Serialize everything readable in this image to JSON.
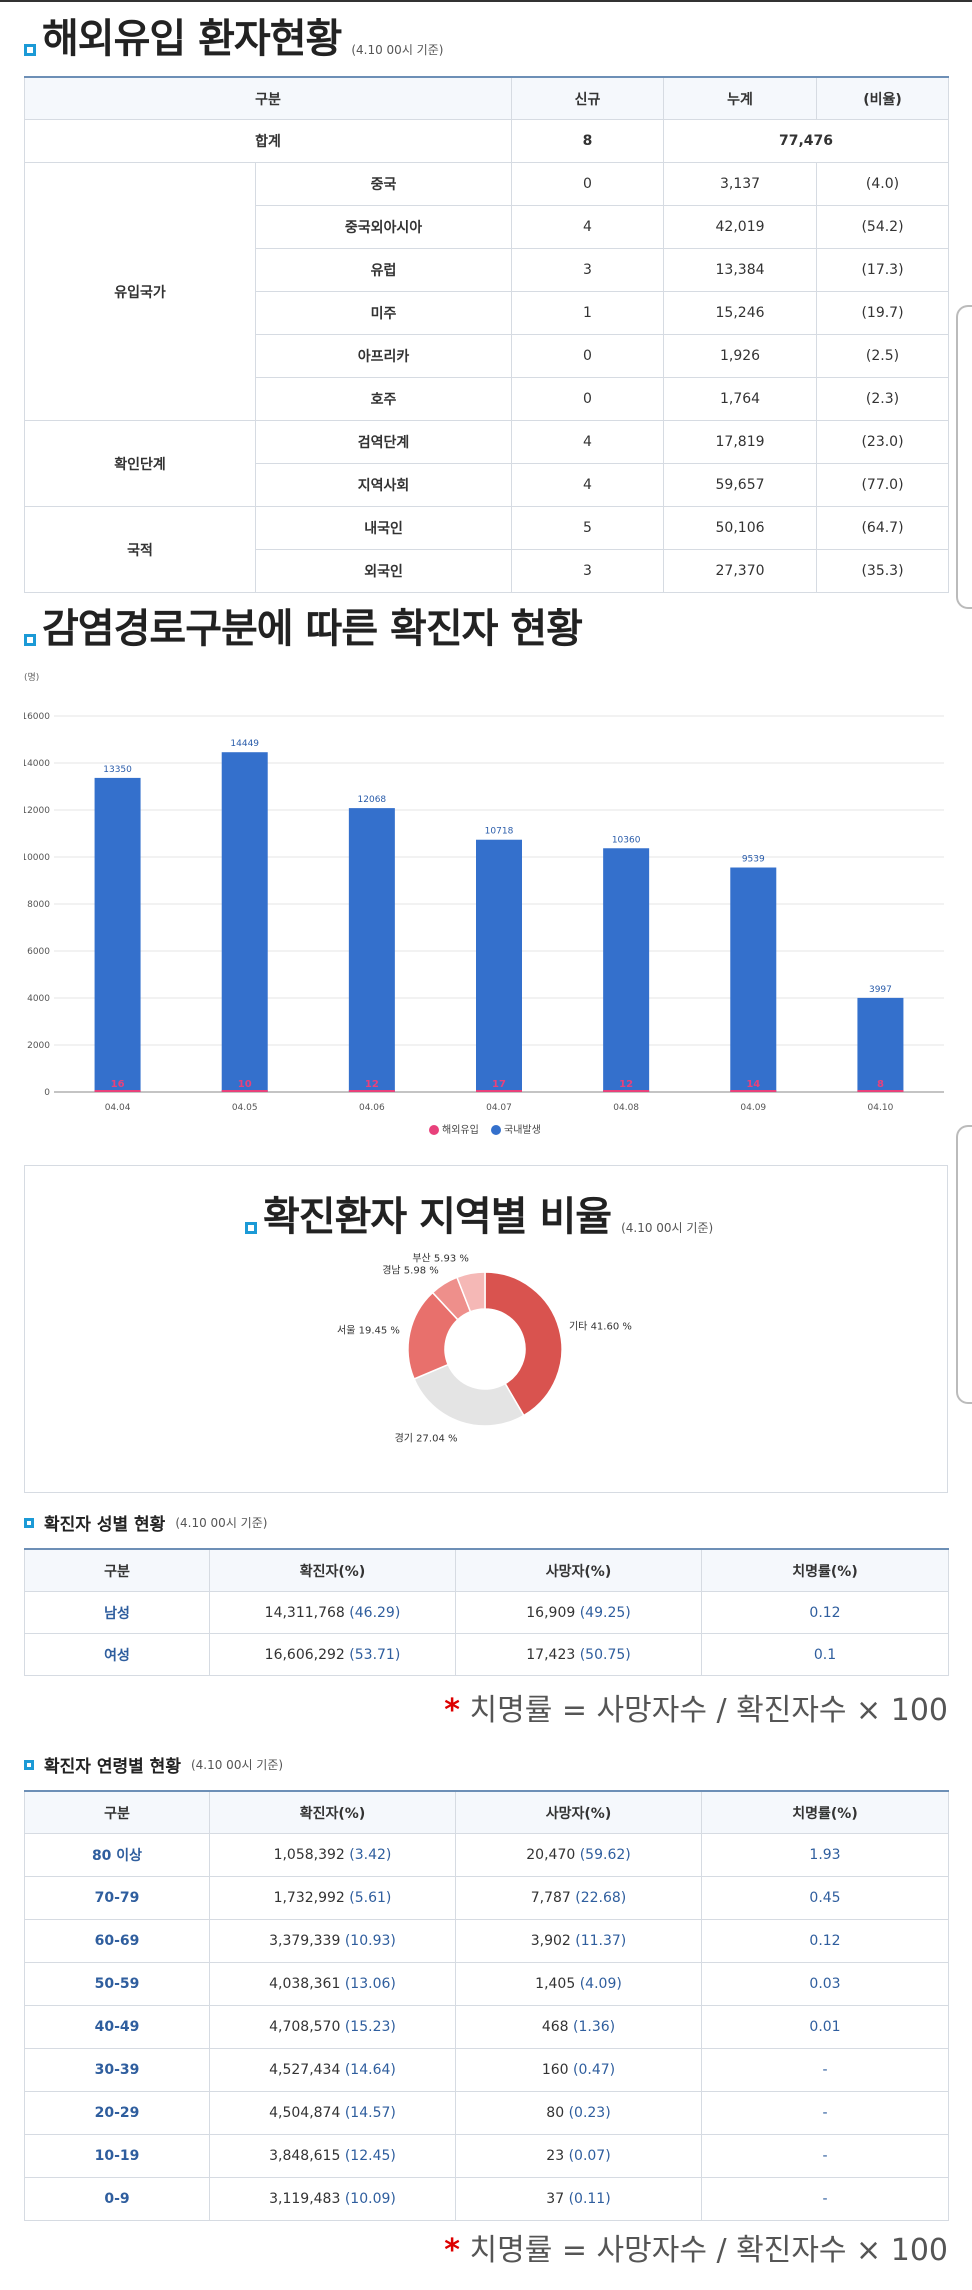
{
  "overseas": {
    "title": "해외유입 환자현황",
    "note": "(4.10 00시 기준)",
    "headers": [
      "구분",
      "신규",
      "누계",
      "(비율)"
    ],
    "total": {
      "label": "합계",
      "new": "8",
      "cum": "77,476"
    },
    "groups": [
      {
        "name": "유입국가",
        "rows": [
          {
            "label": "중국",
            "new": "0",
            "cum": "3,137",
            "ratio": "(4.0)"
          },
          {
            "label": "중국외아시아",
            "new": "4",
            "cum": "42,019",
            "ratio": "(54.2)"
          },
          {
            "label": "유럽",
            "new": "3",
            "cum": "13,384",
            "ratio": "(17.3)"
          },
          {
            "label": "미주",
            "new": "1",
            "cum": "15,246",
            "ratio": "(19.7)"
          },
          {
            "label": "아프리카",
            "new": "0",
            "cum": "1,926",
            "ratio": "(2.5)"
          },
          {
            "label": "호주",
            "new": "0",
            "cum": "1,764",
            "ratio": "(2.3)"
          }
        ]
      },
      {
        "name": "확인단계",
        "rows": [
          {
            "label": "검역단계",
            "new": "4",
            "cum": "17,819",
            "ratio": "(23.0)"
          },
          {
            "label": "지역사회",
            "new": "4",
            "cum": "59,657",
            "ratio": "(77.0)"
          }
        ]
      },
      {
        "name": "국적",
        "rows": [
          {
            "label": "내국인",
            "new": "5",
            "cum": "50,106",
            "ratio": "(64.7)"
          },
          {
            "label": "외국인",
            "new": "3",
            "cum": "27,370",
            "ratio": "(35.3)"
          }
        ]
      }
    ]
  },
  "route_title": "감염경로구분에 따른 확진자 현황",
  "region_title": "확진환자 지역별 비율",
  "region_note": "(4.10 00시 기준)",
  "gender": {
    "title": "확진자 성별 현황",
    "note": "(4.10 00시 기준)",
    "headers": [
      "구분",
      "확진자(%)",
      "사망자(%)",
      "치명률(%)"
    ],
    "rows": [
      {
        "label": "남성",
        "cases": "14,311,768",
        "cases_pct": "(46.29)",
        "deaths": "16,909",
        "deaths_pct": "(49.25)",
        "cfr": "0.12"
      },
      {
        "label": "여성",
        "cases": "16,606,292",
        "cases_pct": "(53.71)",
        "deaths": "17,423",
        "deaths_pct": "(50.75)",
        "cfr": "0.1"
      }
    ]
  },
  "formula": {
    "star": "*",
    "text": "치명률 = 사망자수 / 확진자수 × 100"
  },
  "age": {
    "title": "확진자 연령별 현황",
    "note": "(4.10 00시 기준)",
    "headers": [
      "구분",
      "확진자(%)",
      "사망자(%)",
      "치명률(%)"
    ],
    "rows": [
      {
        "label": "80 이상",
        "cases": "1,058,392",
        "cases_pct": "(3.42)",
        "deaths": "20,470",
        "deaths_pct": "(59.62)",
        "cfr": "1.93"
      },
      {
        "label": "70-79",
        "cases": "1,732,992",
        "cases_pct": "(5.61)",
        "deaths": "7,787",
        "deaths_pct": "(22.68)",
        "cfr": "0.45"
      },
      {
        "label": "60-69",
        "cases": "3,379,339",
        "cases_pct": "(10.93)",
        "deaths": "3,902",
        "deaths_pct": "(11.37)",
        "cfr": "0.12"
      },
      {
        "label": "50-59",
        "cases": "4,038,361",
        "cases_pct": "(13.06)",
        "deaths": "1,405",
        "deaths_pct": "(4.09)",
        "cfr": "0.03"
      },
      {
        "label": "40-49",
        "cases": "4,708,570",
        "cases_pct": "(15.23)",
        "deaths": "468",
        "deaths_pct": "(1.36)",
        "cfr": "0.01"
      },
      {
        "label": "30-39",
        "cases": "4,527,434",
        "cases_pct": "(14.64)",
        "deaths": "160",
        "deaths_pct": "(0.47)",
        "cfr": "-"
      },
      {
        "label": "20-29",
        "cases": "4,504,874",
        "cases_pct": "(14.57)",
        "deaths": "80",
        "deaths_pct": "(0.23)",
        "cfr": "-"
      },
      {
        "label": "10-19",
        "cases": "3,848,615",
        "cases_pct": "(12.45)",
        "deaths": "23",
        "deaths_pct": "(0.07)",
        "cfr": "-"
      },
      {
        "label": "0-9",
        "cases": "3,119,483",
        "cases_pct": "(10.09)",
        "deaths": "37",
        "deaths_pct": "(0.11)",
        "cfr": "-"
      }
    ]
  },
  "chart_data": [
    {
      "type": "bar",
      "unit_label": "(명)",
      "categories": [
        "04.04",
        "04.05",
        "04.06",
        "04.07",
        "04.08",
        "04.09",
        "04.10"
      ],
      "series": [
        {
          "name": "해외유입",
          "values": [
            16,
            10,
            12,
            17,
            12,
            14,
            8
          ],
          "color": "#e8417b"
        },
        {
          "name": "국내발생",
          "values": [
            13350,
            14449,
            12068,
            10718,
            10360,
            9539,
            3997
          ],
          "color": "#3470cc"
        }
      ],
      "yticks": [
        0,
        2000,
        4000,
        6000,
        8000,
        10000,
        12000,
        14000,
        16000
      ],
      "ylim": [
        0,
        16000
      ],
      "stacked": true,
      "legend": "bottom-center",
      "grid": true
    },
    {
      "type": "pie",
      "donut": true,
      "slices": [
        {
          "label": "기타",
          "value": 41.6,
          "text": "기타 41.60 %",
          "color": "#d9534f"
        },
        {
          "label": "경기",
          "value": 27.04,
          "text": "경기 27.04 %",
          "color": "#e4e4e4"
        },
        {
          "label": "서울",
          "value": 19.45,
          "text": "서울 19.45 %",
          "color": "#e8706c"
        },
        {
          "label": "경남",
          "value": 5.98,
          "text": "경남 5.98 %",
          "color": "#ee8f8b"
        },
        {
          "label": "부산",
          "value": 5.93,
          "text": "부산 5.93 %",
          "color": "#f5b8b6"
        }
      ]
    }
  ]
}
